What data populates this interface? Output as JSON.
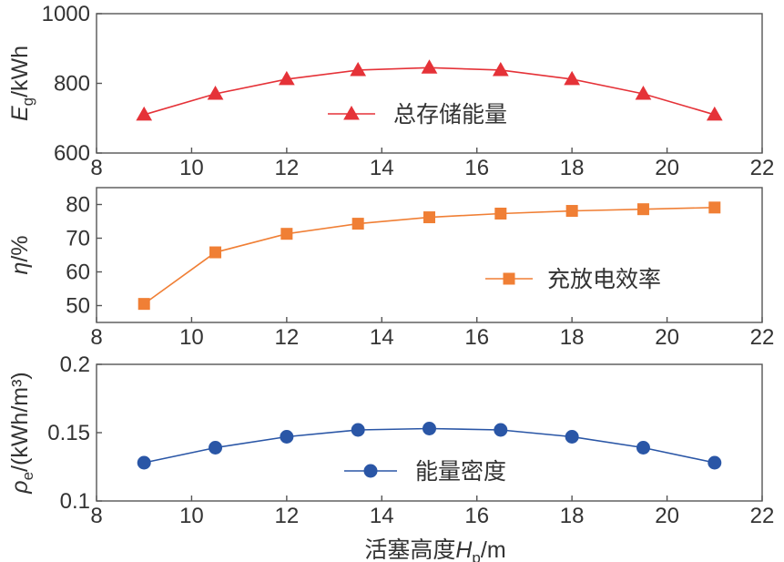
{
  "chart_data": [
    {
      "type": "line",
      "ylabel": {
        "main": "E",
        "sub": "g",
        "rest": "/kWh"
      },
      "x": [
        9,
        10.5,
        12,
        13.5,
        15,
        16.5,
        18,
        19.5,
        21
      ],
      "xlim": [
        8,
        22
      ],
      "xticks": [
        "8",
        "10",
        "12",
        "14",
        "16",
        "18",
        "20",
        "22"
      ],
      "ylim": [
        600,
        1000
      ],
      "yticks": [
        "600",
        "800",
        "1000"
      ],
      "series": [
        {
          "name": "总存储能量",
          "marker": "triangle",
          "color": "#e53238",
          "values": [
            710,
            770,
            812,
            838,
            845,
            838,
            812,
            770,
            710
          ]
        }
      ],
      "legend": "center-right"
    },
    {
      "type": "line",
      "ylabel": {
        "main": "η",
        "sub": "",
        "rest": "/%"
      },
      "x": [
        9,
        10.5,
        12,
        13.5,
        15,
        16.5,
        18,
        19.5,
        21
      ],
      "xlim": [
        8,
        22
      ],
      "xticks": [
        "8",
        "10",
        "12",
        "14",
        "16",
        "18",
        "20",
        "22"
      ],
      "ylim": [
        45,
        85
      ],
      "yticks": [
        "50",
        "60",
        "70",
        "80"
      ],
      "series": [
        {
          "name": "充放电效率",
          "marker": "square",
          "color": "#f07f35",
          "values": [
            50.5,
            65.8,
            71.3,
            74.3,
            76.2,
            77.3,
            78.1,
            78.6,
            79.1
          ]
        }
      ],
      "legend": "bottom-right"
    },
    {
      "type": "line",
      "ylabel": {
        "main": "ρ",
        "sub": "e",
        "rest": "/(kWh/m³)"
      },
      "x": [
        9,
        10.5,
        12,
        13.5,
        15,
        16.5,
        18,
        19.5,
        21
      ],
      "xlim": [
        8,
        22
      ],
      "xticks": [
        "8",
        "10",
        "12",
        "14",
        "16",
        "18",
        "20",
        "22"
      ],
      "ylim": [
        0.1,
        0.2
      ],
      "yticks": [
        "0.1",
        "0.15",
        "0.2"
      ],
      "series": [
        {
          "name": "能量密度",
          "marker": "circle",
          "color": "#2a56a6",
          "values": [
            0.128,
            0.139,
            0.147,
            0.152,
            0.153,
            0.152,
            0.147,
            0.139,
            0.128
          ]
        }
      ],
      "legend": "bottom-center"
    }
  ],
  "xlabel": {
    "prefix": "活塞高度",
    "main": "H",
    "sub": "p",
    "rest": "/m"
  }
}
